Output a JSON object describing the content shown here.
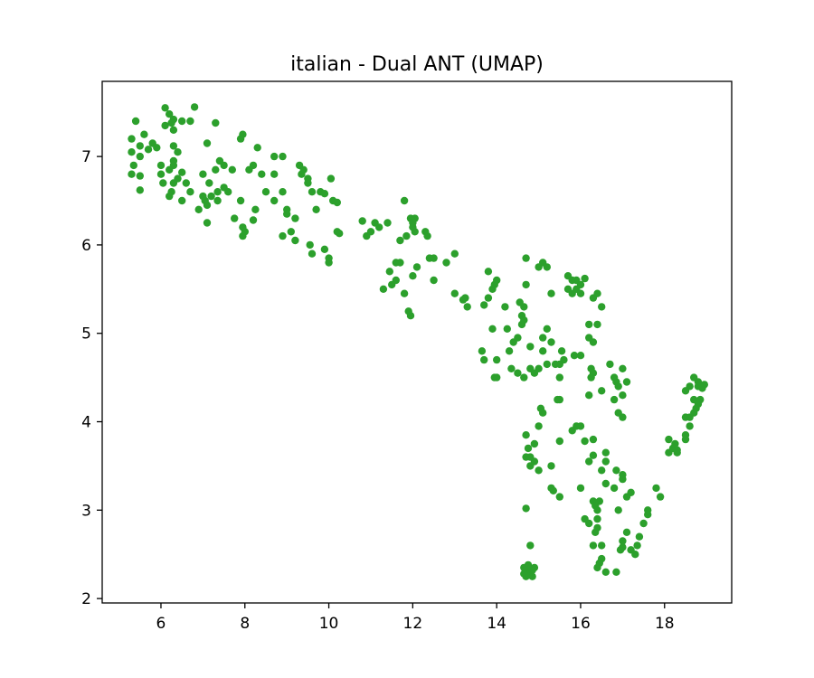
{
  "chart_data": {
    "type": "scatter",
    "title": "italian - Dual ANT (UMAP)",
    "xlabel": "",
    "ylabel": "",
    "xlim": [
      4.6,
      19.6
    ],
    "ylim": [
      1.95,
      7.85
    ],
    "x_ticks": [
      6,
      8,
      10,
      12,
      14,
      16,
      18
    ],
    "x_tick_labels": [
      "6",
      "8",
      "10",
      "12",
      "14",
      "16",
      "18"
    ],
    "y_ticks": [
      2,
      3,
      4,
      5,
      6,
      7
    ],
    "y_tick_labels": [
      "2",
      "3",
      "4",
      "5",
      "6",
      "7"
    ],
    "grid": false,
    "legend": "none",
    "point_color": "#2ca02c",
    "points": [
      [
        5.4,
        7.4
      ],
      [
        5.3,
        7.2
      ],
      [
        5.5,
        7.12
      ],
      [
        5.3,
        7.05
      ],
      [
        5.5,
        7.0
      ],
      [
        5.35,
        6.9
      ],
      [
        5.3,
        6.8
      ],
      [
        5.5,
        6.78
      ],
      [
        5.5,
        6.62
      ],
      [
        5.6,
        7.25
      ],
      [
        5.7,
        7.08
      ],
      [
        5.8,
        7.15
      ],
      [
        5.9,
        7.1
      ],
      [
        6.0,
        6.9
      ],
      [
        6.0,
        6.8
      ],
      [
        6.05,
        6.7
      ],
      [
        6.1,
        7.55
      ],
      [
        6.1,
        7.35
      ],
      [
        6.2,
        7.48
      ],
      [
        6.3,
        7.42
      ],
      [
        6.25,
        7.38
      ],
      [
        6.3,
        7.3
      ],
      [
        6.3,
        7.12
      ],
      [
        6.4,
        7.05
      ],
      [
        6.3,
        6.95
      ],
      [
        6.3,
        6.9
      ],
      [
        6.2,
        6.85
      ],
      [
        6.4,
        6.75
      ],
      [
        6.5,
        6.82
      ],
      [
        6.3,
        6.7
      ],
      [
        6.25,
        6.6
      ],
      [
        6.2,
        6.55
      ],
      [
        6.5,
        6.5
      ],
      [
        6.5,
        7.4
      ],
      [
        6.7,
        7.4
      ],
      [
        6.8,
        7.56
      ],
      [
        6.6,
        6.7
      ],
      [
        6.7,
        6.6
      ],
      [
        6.9,
        6.4
      ],
      [
        7.0,
        6.8
      ],
      [
        7.0,
        6.55
      ],
      [
        7.05,
        6.5
      ],
      [
        7.1,
        6.45
      ],
      [
        7.1,
        7.15
      ],
      [
        7.15,
        6.7
      ],
      [
        7.2,
        6.55
      ],
      [
        7.3,
        6.85
      ],
      [
        7.35,
        6.6
      ],
      [
        7.4,
        6.95
      ],
      [
        7.5,
        6.9
      ],
      [
        7.3,
        7.38
      ],
      [
        7.1,
        6.25
      ],
      [
        7.35,
        6.5
      ],
      [
        7.5,
        6.65
      ],
      [
        7.6,
        6.6
      ],
      [
        7.7,
        6.85
      ],
      [
        7.75,
        6.3
      ],
      [
        7.9,
        6.5
      ],
      [
        7.9,
        7.2
      ],
      [
        7.95,
        7.25
      ],
      [
        7.95,
        6.2
      ],
      [
        7.95,
        6.1
      ],
      [
        8.0,
        6.15
      ],
      [
        8.1,
        6.85
      ],
      [
        8.2,
        6.9
      ],
      [
        8.2,
        6.28
      ],
      [
        8.25,
        6.4
      ],
      [
        8.3,
        7.1
      ],
      [
        8.4,
        6.8
      ],
      [
        8.5,
        6.6
      ],
      [
        8.7,
        7.0
      ],
      [
        8.7,
        6.8
      ],
      [
        8.7,
        6.5
      ],
      [
        8.9,
        7.0
      ],
      [
        8.9,
        6.6
      ],
      [
        8.9,
        6.1
      ],
      [
        9.0,
        6.4
      ],
      [
        9.0,
        6.35
      ],
      [
        9.1,
        6.15
      ],
      [
        9.2,
        6.05
      ],
      [
        9.2,
        6.3
      ],
      [
        9.3,
        6.9
      ],
      [
        9.35,
        6.8
      ],
      [
        9.4,
        6.85
      ],
      [
        9.5,
        6.7
      ],
      [
        9.5,
        6.75
      ],
      [
        9.6,
        6.6
      ],
      [
        9.55,
        6.0
      ],
      [
        9.6,
        5.9
      ],
      [
        9.7,
        6.4
      ],
      [
        9.8,
        6.6
      ],
      [
        9.9,
        6.58
      ],
      [
        9.9,
        5.95
      ],
      [
        10.0,
        5.85
      ],
      [
        10.0,
        5.8
      ],
      [
        10.05,
        6.75
      ],
      [
        10.1,
        6.5
      ],
      [
        10.2,
        6.48
      ],
      [
        10.2,
        6.15
      ],
      [
        10.25,
        6.13
      ],
      [
        10.8,
        6.27
      ],
      [
        10.9,
        6.1
      ],
      [
        11.0,
        6.15
      ],
      [
        11.1,
        6.25
      ],
      [
        11.2,
        6.2
      ],
      [
        11.4,
        6.25
      ],
      [
        11.3,
        5.5
      ],
      [
        11.45,
        5.7
      ],
      [
        11.5,
        5.55
      ],
      [
        11.6,
        5.6
      ],
      [
        11.6,
        5.8
      ],
      [
        11.7,
        5.8
      ],
      [
        11.7,
        6.05
      ],
      [
        11.8,
        6.5
      ],
      [
        11.8,
        5.45
      ],
      [
        11.9,
        5.25
      ],
      [
        11.95,
        5.2
      ],
      [
        11.85,
        6.1
      ],
      [
        11.95,
        6.3
      ],
      [
        12.0,
        6.25
      ],
      [
        12.0,
        6.2
      ],
      [
        12.05,
        6.3
      ],
      [
        12.05,
        6.15
      ],
      [
        12.1,
        5.75
      ],
      [
        12.0,
        5.65
      ],
      [
        12.3,
        6.15
      ],
      [
        12.35,
        6.1
      ],
      [
        12.4,
        5.85
      ],
      [
        12.5,
        5.6
      ],
      [
        12.5,
        5.85
      ],
      [
        12.8,
        5.8
      ],
      [
        13.0,
        5.9
      ],
      [
        13.0,
        5.45
      ],
      [
        13.2,
        5.38
      ],
      [
        13.25,
        5.4
      ],
      [
        13.3,
        5.3
      ],
      [
        13.7,
        5.32
      ],
      [
        13.65,
        4.8
      ],
      [
        13.7,
        4.7
      ],
      [
        13.8,
        5.7
      ],
      [
        13.8,
        5.4
      ],
      [
        13.9,
        5.5
      ],
      [
        13.95,
        5.55
      ],
      [
        14.0,
        5.6
      ],
      [
        13.9,
        5.05
      ],
      [
        13.95,
        4.5
      ],
      [
        14.0,
        4.5
      ],
      [
        14.0,
        4.7
      ],
      [
        14.2,
        5.3
      ],
      [
        14.25,
        5.05
      ],
      [
        14.35,
        4.6
      ],
      [
        14.3,
        4.8
      ],
      [
        14.4,
        4.9
      ],
      [
        14.5,
        4.55
      ],
      [
        14.5,
        4.95
      ],
      [
        14.6,
        5.2
      ],
      [
        14.65,
        5.15
      ],
      [
        14.7,
        5.85
      ],
      [
        14.55,
        5.35
      ],
      [
        14.65,
        5.3
      ],
      [
        14.7,
        5.55
      ],
      [
        14.6,
        5.1
      ],
      [
        14.65,
        4.5
      ],
      [
        14.8,
        4.85
      ],
      [
        14.8,
        4.6
      ],
      [
        14.9,
        4.55
      ],
      [
        15.0,
        4.6
      ],
      [
        15.0,
        5.75
      ],
      [
        15.1,
        5.8
      ],
      [
        15.2,
        5.75
      ],
      [
        15.2,
        5.05
      ],
      [
        15.1,
        4.95
      ],
      [
        15.1,
        4.8
      ],
      [
        15.2,
        4.65
      ],
      [
        15.3,
        4.9
      ],
      [
        15.4,
        4.65
      ],
      [
        15.5,
        4.65
      ],
      [
        15.5,
        4.5
      ],
      [
        15.55,
        4.8
      ],
      [
        15.6,
        4.7
      ],
      [
        15.3,
        5.45
      ],
      [
        15.7,
        5.65
      ],
      [
        15.8,
        5.6
      ],
      [
        15.7,
        5.5
      ],
      [
        15.8,
        5.45
      ],
      [
        15.9,
        5.5
      ],
      [
        15.9,
        5.6
      ],
      [
        16.0,
        5.45
      ],
      [
        16.0,
        5.55
      ],
      [
        16.1,
        5.62
      ],
      [
        16.2,
        5.1
      ],
      [
        16.2,
        4.95
      ],
      [
        16.25,
        4.6
      ],
      [
        16.3,
        4.55
      ],
      [
        16.3,
        4.9
      ],
      [
        16.4,
        5.1
      ],
      [
        16.3,
        5.4
      ],
      [
        16.4,
        5.45
      ],
      [
        16.5,
        5.3
      ],
      [
        15.85,
        4.75
      ],
      [
        16.0,
        4.75
      ],
      [
        16.5,
        4.35
      ],
      [
        16.7,
        4.65
      ],
      [
        16.8,
        4.5
      ],
      [
        16.85,
        4.45
      ],
      [
        16.9,
        4.4
      ],
      [
        16.8,
        4.25
      ],
      [
        17.0,
        4.3
      ],
      [
        17.0,
        4.6
      ],
      [
        17.1,
        4.45
      ],
      [
        16.9,
        4.1
      ],
      [
        17.0,
        4.05
      ],
      [
        16.2,
        4.3
      ],
      [
        16.25,
        4.5
      ],
      [
        15.5,
        4.25
      ],
      [
        15.45,
        4.25
      ],
      [
        15.1,
        4.1
      ],
      [
        15.05,
        4.15
      ],
      [
        15.0,
        3.95
      ],
      [
        14.9,
        3.75
      ],
      [
        14.7,
        3.85
      ],
      [
        14.75,
        3.7
      ],
      [
        14.7,
        3.6
      ],
      [
        14.8,
        3.5
      ],
      [
        14.8,
        3.6
      ],
      [
        14.9,
        3.55
      ],
      [
        15.0,
        3.45
      ],
      [
        15.3,
        3.25
      ],
      [
        15.35,
        3.22
      ],
      [
        15.3,
        3.5
      ],
      [
        15.5,
        3.15
      ],
      [
        15.5,
        3.78
      ],
      [
        15.8,
        3.9
      ],
      [
        15.9,
        3.95
      ],
      [
        16.0,
        3.95
      ],
      [
        16.1,
        3.78
      ],
      [
        16.3,
        3.8
      ],
      [
        16.0,
        3.25
      ],
      [
        16.2,
        3.55
      ],
      [
        16.3,
        3.62
      ],
      [
        16.6,
        3.65
      ],
      [
        16.6,
        3.55
      ],
      [
        16.5,
        3.45
      ],
      [
        16.6,
        3.3
      ],
      [
        16.8,
        3.25
      ],
      [
        16.85,
        3.45
      ],
      [
        17.0,
        3.4
      ],
      [
        17.0,
        3.35
      ],
      [
        17.1,
        3.15
      ],
      [
        17.2,
        3.2
      ],
      [
        16.3,
        3.1
      ],
      [
        16.35,
        3.05
      ],
      [
        16.4,
        3.0
      ],
      [
        16.4,
        2.9
      ],
      [
        16.45,
        3.1
      ],
      [
        16.4,
        2.8
      ],
      [
        16.35,
        2.75
      ],
      [
        16.3,
        2.6
      ],
      [
        16.2,
        2.85
      ],
      [
        16.1,
        2.9
      ],
      [
        16.5,
        2.6
      ],
      [
        16.5,
        2.45
      ],
      [
        16.45,
        2.4
      ],
      [
        16.4,
        2.35
      ],
      [
        16.9,
        3.0
      ],
      [
        17.0,
        2.65
      ],
      [
        17.0,
        2.58
      ],
      [
        16.95,
        2.55
      ],
      [
        17.1,
        2.75
      ],
      [
        17.2,
        2.55
      ],
      [
        17.3,
        2.5
      ],
      [
        17.35,
        2.6
      ],
      [
        17.4,
        2.7
      ],
      [
        17.5,
        2.85
      ],
      [
        17.6,
        2.95
      ],
      [
        17.6,
        3.0
      ],
      [
        17.8,
        3.25
      ],
      [
        17.9,
        3.15
      ],
      [
        16.6,
        2.3
      ],
      [
        16.85,
        2.3
      ],
      [
        14.7,
        3.02
      ],
      [
        14.8,
        2.6
      ],
      [
        14.65,
        2.35
      ],
      [
        14.7,
        2.32
      ],
      [
        14.75,
        2.38
      ],
      [
        14.8,
        2.3
      ],
      [
        14.75,
        2.28
      ],
      [
        14.85,
        2.25
      ],
      [
        14.9,
        2.35
      ],
      [
        14.65,
        2.28
      ],
      [
        14.7,
        2.25
      ],
      [
        14.85,
        2.32
      ],
      [
        18.1,
        3.65
      ],
      [
        18.2,
        3.7
      ],
      [
        18.3,
        3.65
      ],
      [
        18.25,
        3.75
      ],
      [
        18.1,
        3.8
      ],
      [
        18.5,
        3.85
      ],
      [
        18.5,
        3.8
      ],
      [
        18.6,
        3.95
      ],
      [
        18.5,
        4.05
      ],
      [
        18.6,
        4.05
      ],
      [
        18.7,
        4.1
      ],
      [
        18.75,
        4.15
      ],
      [
        18.8,
        4.2
      ],
      [
        18.7,
        4.25
      ],
      [
        18.5,
        4.35
      ],
      [
        18.6,
        4.4
      ],
      [
        18.7,
        4.5
      ],
      [
        18.8,
        4.45
      ],
      [
        18.8,
        4.4
      ],
      [
        18.9,
        4.38
      ],
      [
        18.95,
        4.42
      ],
      [
        18.85,
        4.25
      ],
      [
        18.3,
        3.68
      ]
    ]
  }
}
